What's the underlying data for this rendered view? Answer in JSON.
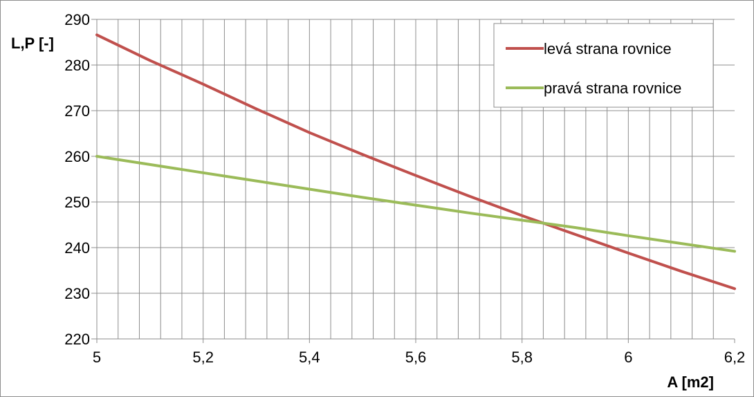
{
  "chart_data": {
    "type": "line",
    "title": "",
    "xlabel": "A [m2]",
    "ylabel": "L,P [-]",
    "xlim": [
      5,
      6.2
    ],
    "ylim": [
      220,
      290
    ],
    "x_ticks": [
      "5",
      "5,2",
      "5,4",
      "5,6",
      "5,8",
      "6",
      "6,2"
    ],
    "y_ticks": [
      "220",
      "230",
      "240",
      "250",
      "260",
      "270",
      "280",
      "290"
    ],
    "x_minor_grid_step": 0.04,
    "grid": true,
    "legend_position": "top-right",
    "x": [
      5.0,
      5.1,
      5.2,
      5.3,
      5.4,
      5.5,
      5.6,
      5.7,
      5.8,
      5.9,
      6.0,
      6.1,
      6.2
    ],
    "series": [
      {
        "name": "levá strana rovnice",
        "color": "#c0504d",
        "values": [
          286.6,
          281.0,
          275.8,
          270.4,
          265.2,
          260.4,
          255.8,
          251.3,
          247.0,
          242.9,
          238.8,
          234.8,
          231.0
        ]
      },
      {
        "name": "pravá strana rovnice",
        "color": "#9bbb59",
        "values": [
          260.0,
          258.2,
          256.4,
          254.6,
          252.8,
          251.0,
          249.3,
          247.6,
          246.0,
          244.4,
          242.6,
          240.9,
          239.2
        ]
      }
    ]
  }
}
